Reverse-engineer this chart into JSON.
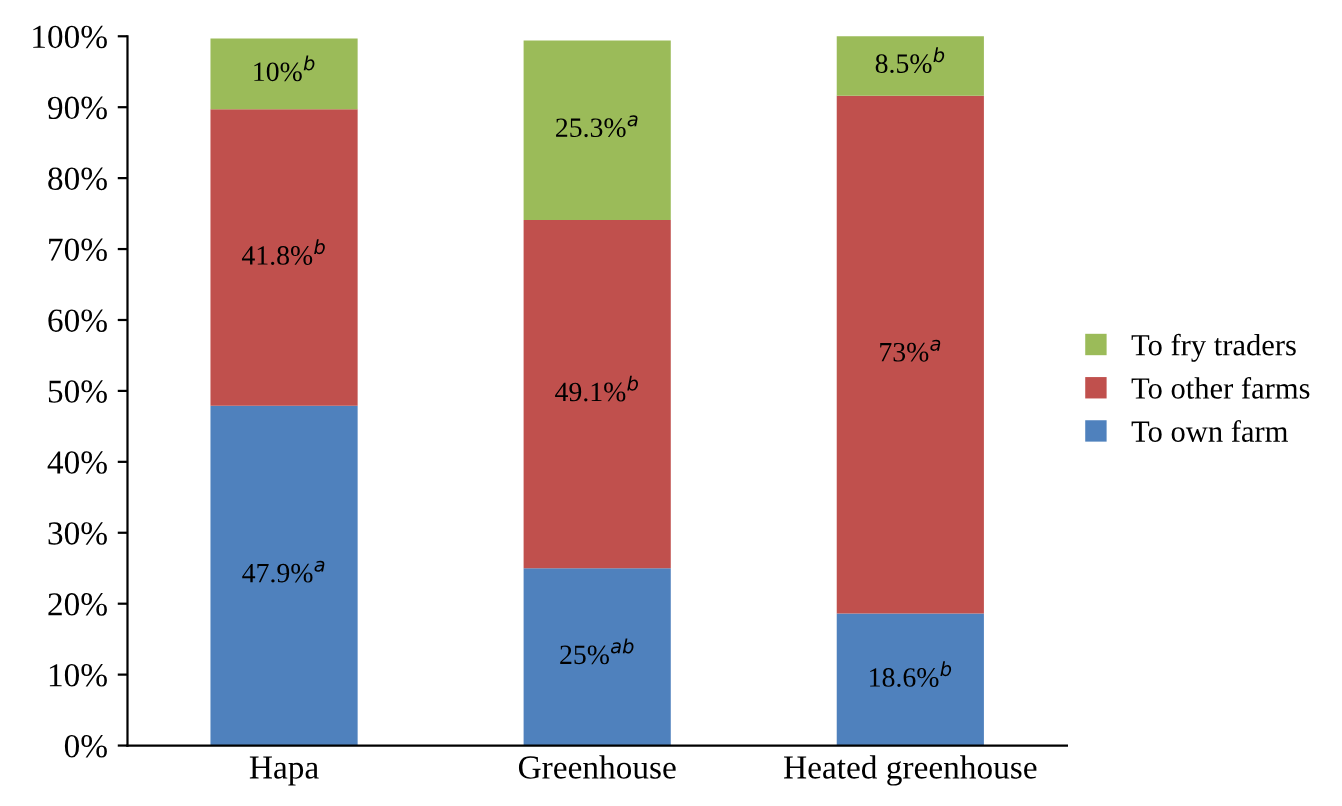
{
  "chart_data": {
    "type": "bar",
    "stacked": true,
    "categories": [
      "Hapa",
      "Greenhouse",
      "Heated greenhouse"
    ],
    "series": [
      {
        "name": "To own farm",
        "color": "#4f81bd",
        "values": [
          47.9,
          25,
          18.6
        ],
        "value_labels": [
          "47.9%$^{a}$",
          "25%$^{ab}$",
          "18.6%$^{b}$"
        ]
      },
      {
        "name": "To other farms",
        "color": "#c0504d",
        "values": [
          41.8,
          49.1,
          73
        ],
        "value_labels": [
          "41.8%$^{b}$",
          "49.1%$^{b}$",
          "73%$^{a}$"
        ]
      },
      {
        "name": "To fry traders",
        "color": "#9bbb59",
        "values": [
          10,
          25.3,
          8.5
        ],
        "value_labels": [
          "10%$^{b}$",
          "25.3%$^{a}$",
          "8.5%$^{b}$"
        ]
      }
    ],
    "ylim": [
      0,
      100
    ],
    "yticks": [
      {
        "value": 0,
        "label": "0%"
      },
      {
        "value": 10,
        "label": "10%"
      },
      {
        "value": 20,
        "label": "20%"
      },
      {
        "value": 30,
        "label": "30%"
      },
      {
        "value": 40,
        "label": "40%"
      },
      {
        "value": 50,
        "label": "50%"
      },
      {
        "value": 60,
        "label": "60%"
      },
      {
        "value": 70,
        "label": "70%"
      },
      {
        "value": 80,
        "label": "80%"
      },
      {
        "value": 90,
        "label": "90%"
      },
      {
        "value": 100,
        "label": "100%"
      }
    ],
    "grid": false,
    "legend": "right"
  }
}
